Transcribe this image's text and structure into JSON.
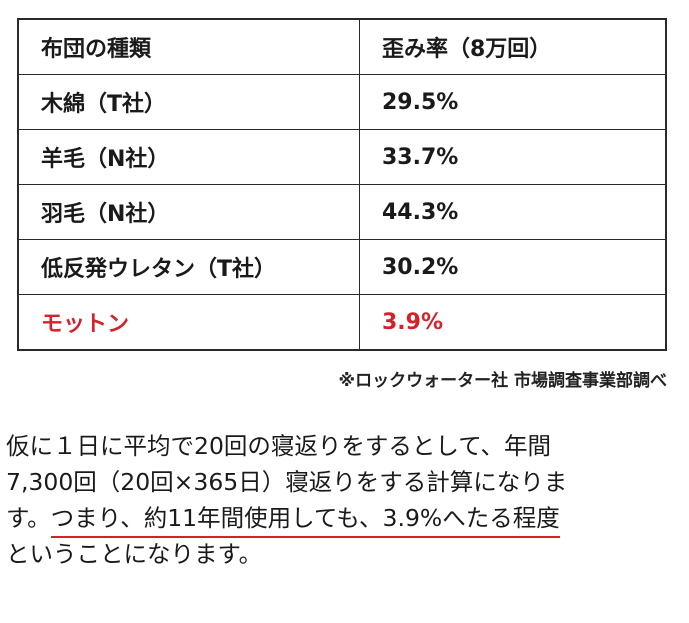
{
  "table": {
    "headers": [
      "布団の種類",
      "歪み率（8万回）"
    ],
    "rows": [
      {
        "type": "木綿（T社）",
        "rate": "29.5%"
      },
      {
        "type": "羊毛（N社）",
        "rate": "33.7%"
      },
      {
        "type": "羽毛（N社）",
        "rate": "44.3%"
      },
      {
        "type": "低反発ウレタン（T社）",
        "rate": "30.2%"
      },
      {
        "type": "モットン",
        "rate": "3.9%"
      }
    ],
    "highlight_color": "#d2232a"
  },
  "source_note": "※ロックウォーター社 市場調査事業部調べ",
  "paragraph": {
    "line1": "仮に１日に平均で20回の寝返りをするとして、年間",
    "line2": "7,300回（20回×365日）寝返りをする計算になりま",
    "line3_prefix": "す。",
    "line3_underlined": "つまり、約11年間使用しても、3.9%へたる程度",
    "line4": "ということになります。",
    "underline_color": "#d2232a"
  }
}
